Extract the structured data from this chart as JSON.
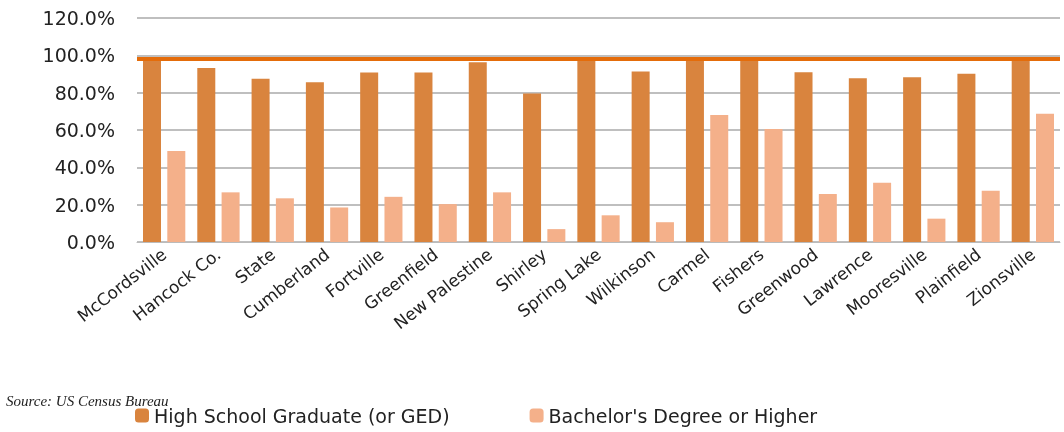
{
  "chart_data": {
    "type": "bar",
    "categories": [
      "McCordsville",
      "Hancock Co.",
      "State",
      "Cumberland",
      "Fortville",
      "Greenfield",
      "New Palestine",
      "Shirley",
      "Spring Lake",
      "Wilkinson",
      "Carmel",
      "Fishers",
      "Greenwood",
      "Lawrence",
      "Mooresville",
      "Plainfield",
      "Zionsville"
    ],
    "series": [
      {
        "name": "High School Graduate (or GED)",
        "color": "#d9843e",
        "values": [
          98,
          93.2,
          87.5,
          85.6,
          90.8,
          90.8,
          96.3,
          79.5,
          98,
          91.4,
          98,
          98,
          90.9,
          87.7,
          88.3,
          90.2,
          98
        ]
      },
      {
        "name": "Bachelor's Degree or Higher",
        "color": "#f4b08a",
        "values": [
          48.7,
          26.6,
          23.4,
          18.5,
          24.2,
          20.3,
          26.6,
          6.9,
          14.3,
          10.6,
          68,
          60.5,
          25.7,
          31.7,
          12.5,
          27.4,
          68.7
        ]
      }
    ],
    "ylim": [
      0,
      120
    ],
    "yticks": [
      {
        "value": 0,
        "label": "0.0%"
      },
      {
        "value": 20,
        "label": "20.0%"
      },
      {
        "value": 40,
        "label": "40.0%"
      },
      {
        "value": 60,
        "label": "60.0%"
      },
      {
        "value": 80,
        "label": "80.0%"
      },
      {
        "value": 100,
        "label": "100.0%"
      },
      {
        "value": 120,
        "label": "120.0%"
      }
    ],
    "ref_lines": [
      {
        "axis": "y",
        "value": 98.2,
        "color": "#e46c0a"
      }
    ],
    "annotations": [
      "Source: US Census Bureau"
    ],
    "grid": "y",
    "legend": "bottom"
  }
}
